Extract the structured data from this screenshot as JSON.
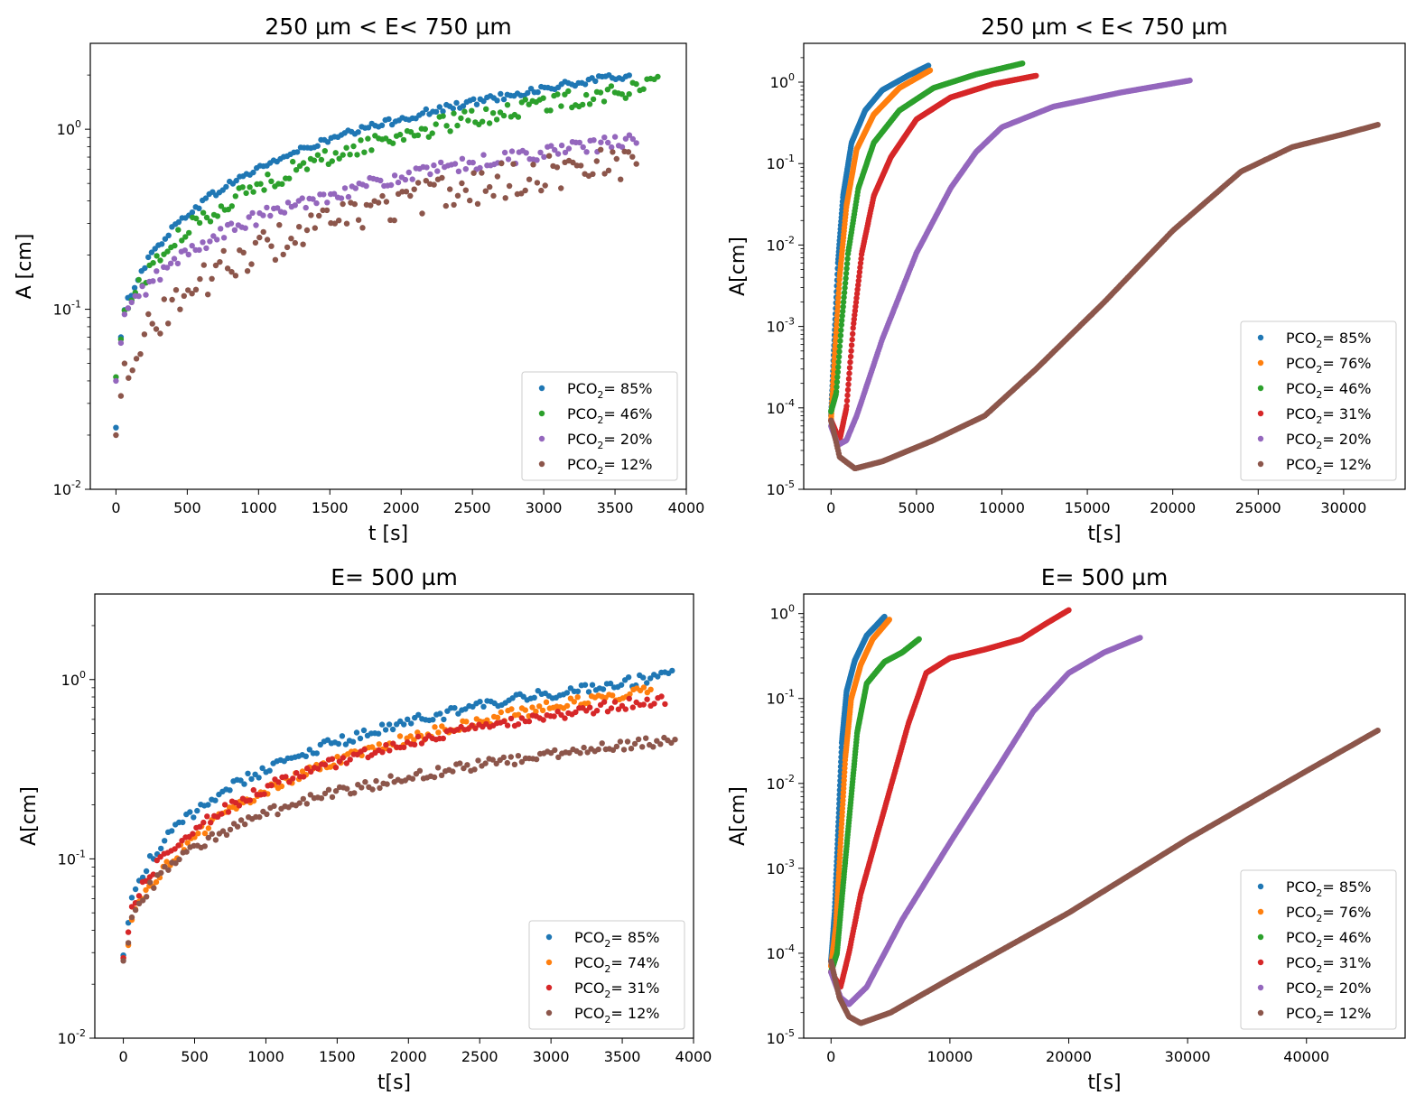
{
  "chart_data": [
    {
      "type": "scatter",
      "title": "250 µm < E<  750 µm",
      "xlabel": "t [s]",
      "ylabel": "A [cm]",
      "yscale": "log",
      "xlim": [
        -180,
        4000
      ],
      "ylim": [
        0.01,
        3
      ],
      "xticks": [
        0,
        500,
        1000,
        1500,
        2000,
        2500,
        3000,
        3500,
        4000
      ],
      "yticks": [
        {
          "value": 0.01,
          "exp": "-2"
        },
        {
          "value": 0.1,
          "exp": "-1"
        },
        {
          "value": 1,
          "exp": "0"
        }
      ],
      "legend_position": "lower-right",
      "series": [
        {
          "name": "85%",
          "color": "#1f77b4",
          "mode": "sparse",
          "t_end": 3600,
          "y_end": 2.0,
          "tau": 120,
          "points": 150,
          "noise": 0.02,
          "start_values": [
            0.022,
            0.07
          ]
        },
        {
          "name": "46%",
          "color": "#2ca02c",
          "mode": "sparse",
          "t_end": 3800,
          "y_end": 1.75,
          "tau": 200,
          "points": 150,
          "noise": 0.05,
          "start_values": [
            0.042,
            0.068
          ]
        },
        {
          "name": "20%",
          "color": "#9467bd",
          "mode": "sparse",
          "t_end": 3650,
          "y_end": 0.87,
          "tau": 220,
          "points": 145,
          "noise": 0.04,
          "start_values": [
            0.04,
            0.065
          ]
        },
        {
          "name": "12%",
          "color": "#8c564b",
          "mode": "sparse",
          "t_end": 3650,
          "y_end": 0.68,
          "tau": 200,
          "points": 130,
          "noise": 0.1,
          "start_values": [
            0.02,
            0.033
          ]
        }
      ]
    },
    {
      "type": "scatter",
      "title": "250 µm < E<  750 µm",
      "xlabel": "t[s]",
      "ylabel": "A[cm]",
      "yscale": "log",
      "xlim": [
        -1600,
        33600
      ],
      "ylim": [
        1e-05,
        3
      ],
      "xticks": [
        0,
        5000,
        10000,
        15000,
        20000,
        25000,
        30000
      ],
      "yticks": [
        {
          "value": 1e-05,
          "exp": "-5"
        },
        {
          "value": 0.0001,
          "exp": "-4"
        },
        {
          "value": 0.001,
          "exp": "-3"
        },
        {
          "value": 0.01,
          "exp": "-2"
        },
        {
          "value": 0.1,
          "exp": "-1"
        },
        {
          "value": 1,
          "exp": "0"
        }
      ],
      "legend_position": "lower-right",
      "series": [
        {
          "name": "85%",
          "color": "#1f77b4",
          "mode": "dense",
          "points": 260,
          "curve": [
            [
              0,
              8e-05
            ],
            [
              150,
              0.00045
            ],
            [
              400,
              0.006
            ],
            [
              700,
              0.04
            ],
            [
              1200,
              0.18
            ],
            [
              2000,
              0.45
            ],
            [
              3000,
              0.8
            ],
            [
              4500,
              1.2
            ],
            [
              5700,
              1.6
            ]
          ]
        },
        {
          "name": "76%",
          "color": "#ff7f0e",
          "mode": "dense",
          "points": 260,
          "curve": [
            [
              0,
              7e-05
            ],
            [
              200,
              0.0004
            ],
            [
              500,
              0.004
            ],
            [
              900,
              0.03
            ],
            [
              1500,
              0.15
            ],
            [
              2500,
              0.4
            ],
            [
              4000,
              0.85
            ],
            [
              5800,
              1.4
            ]
          ]
        },
        {
          "name": "46%",
          "color": "#2ca02c",
          "mode": "dense",
          "points": 320,
          "curve": [
            [
              0,
              9e-05
            ],
            [
              300,
              0.00015
            ],
            [
              600,
              0.001
            ],
            [
              1000,
              0.008
            ],
            [
              1600,
              0.05
            ],
            [
              2500,
              0.18
            ],
            [
              4000,
              0.45
            ],
            [
              6000,
              0.85
            ],
            [
              8500,
              1.25
            ],
            [
              11200,
              1.7
            ]
          ]
        },
        {
          "name": "31%",
          "color": "#d62728",
          "mode": "dense",
          "points": 340,
          "curve": [
            [
              0,
              7e-05
            ],
            [
              500,
              4e-05
            ],
            [
              900,
              0.0001
            ],
            [
              1300,
              0.001
            ],
            [
              1800,
              0.008
            ],
            [
              2500,
              0.04
            ],
            [
              3500,
              0.12
            ],
            [
              5000,
              0.35
            ],
            [
              7000,
              0.65
            ],
            [
              9500,
              0.95
            ],
            [
              12000,
              1.2
            ]
          ]
        },
        {
          "name": "20%",
          "color": "#9467bd",
          "mode": "dense",
          "points": 380,
          "curve": [
            [
              0,
              6e-05
            ],
            [
              400,
              3.5e-05
            ],
            [
              900,
              4e-05
            ],
            [
              1500,
              8e-05
            ],
            [
              3000,
              0.0007
            ],
            [
              5000,
              0.008
            ],
            [
              7000,
              0.05
            ],
            [
              8500,
              0.14
            ],
            [
              10000,
              0.28
            ],
            [
              13000,
              0.5
            ],
            [
              17000,
              0.75
            ],
            [
              21000,
              1.05
            ]
          ]
        },
        {
          "name": "12%",
          "color": "#8c564b",
          "mode": "dense",
          "points": 420,
          "curve": [
            [
              0,
              7e-05
            ],
            [
              500,
              2.5e-05
            ],
            [
              1400,
              1.8e-05
            ],
            [
              3000,
              2.2e-05
            ],
            [
              6000,
              4e-05
            ],
            [
              9000,
              8e-05
            ],
            [
              12000,
              0.0003
            ],
            [
              16000,
              0.002
            ],
            [
              20000,
              0.015
            ],
            [
              24000,
              0.08
            ],
            [
              27000,
              0.16
            ],
            [
              30000,
              0.23
            ],
            [
              32000,
              0.3
            ]
          ]
        }
      ]
    },
    {
      "type": "scatter",
      "title": "E=  500 µm",
      "xlabel": "t[s]",
      "ylabel": "A[cm]",
      "yscale": "log",
      "xlim": [
        -200,
        4000
      ],
      "ylim": [
        0.01,
        3
      ],
      "xticks": [
        0,
        500,
        1000,
        1500,
        2000,
        2500,
        3000,
        3500,
        4000
      ],
      "yticks": [
        {
          "value": 0.01,
          "exp": "-2"
        },
        {
          "value": 0.1,
          "exp": "-1"
        },
        {
          "value": 1,
          "exp": "0"
        }
      ],
      "legend_position": "lower-right",
      "series": [
        {
          "name": "85%",
          "color": "#1f77b4",
          "mode": "sparse",
          "t_end": 3850,
          "y_end": 1.05,
          "tau": 150,
          "points": 150,
          "noise": 0.03,
          "start_values": [
            0.029,
            0.044
          ]
        },
        {
          "name": "74%",
          "color": "#ff7f0e",
          "mode": "sparse",
          "t_end": 3700,
          "y_end": 0.88,
          "tau": 220,
          "points": 150,
          "noise": 0.03,
          "start_values": [
            0.028,
            0.033
          ]
        },
        {
          "name": "31%",
          "color": "#d62728",
          "mode": "sparse",
          "t_end": 3800,
          "y_end": 0.78,
          "tau": 180,
          "points": 150,
          "noise": 0.03,
          "start_values": [
            0.028,
            0.039
          ]
        },
        {
          "name": "12%",
          "color": "#8c564b",
          "mode": "sparse",
          "t_end": 3870,
          "y_end": 0.46,
          "tau": 140,
          "points": 150,
          "noise": 0.03,
          "start_values": [
            0.027,
            0.034
          ]
        }
      ]
    },
    {
      "type": "scatter",
      "title": "E=  500 µm",
      "xlabel": "t[s]",
      "ylabel": "A[cm]",
      "yscale": "log",
      "xlim": [
        -2300,
        48300
      ],
      "ylim": [
        1e-05,
        1.7
      ],
      "xticks": [
        0,
        10000,
        20000,
        30000,
        40000
      ],
      "yticks": [
        {
          "value": 1e-05,
          "exp": "-5"
        },
        {
          "value": 0.0001,
          "exp": "-4"
        },
        {
          "value": 0.001,
          "exp": "-3"
        },
        {
          "value": 0.01,
          "exp": "-2"
        },
        {
          "value": 0.1,
          "exp": "-1"
        },
        {
          "value": 1,
          "exp": "0"
        }
      ],
      "legend_position": "lower-right",
      "series": [
        {
          "name": "85%",
          "color": "#1f77b4",
          "mode": "dense",
          "points": 240,
          "curve": [
            [
              0,
              8e-05
            ],
            [
              300,
              0.0003
            ],
            [
              600,
              0.003
            ],
            [
              900,
              0.03
            ],
            [
              1300,
              0.12
            ],
            [
              2000,
              0.28
            ],
            [
              3000,
              0.55
            ],
            [
              4500,
              0.92
            ]
          ]
        },
        {
          "name": "76%",
          "color": "#ff7f0e",
          "mode": "dense",
          "points": 240,
          "curve": [
            [
              0,
              7e-05
            ],
            [
              400,
              0.0002
            ],
            [
              800,
              0.002
            ],
            [
              1200,
              0.02
            ],
            [
              1700,
              0.1
            ],
            [
              2500,
              0.25
            ],
            [
              3500,
              0.5
            ],
            [
              4900,
              0.85
            ]
          ]
        },
        {
          "name": "46%",
          "color": "#2ca02c",
          "mode": "dense",
          "points": 300,
          "curve": [
            [
              0,
              6e-05
            ],
            [
              500,
              0.0001
            ],
            [
              1000,
              0.0006
            ],
            [
              1600,
              0.005
            ],
            [
              2200,
              0.04
            ],
            [
              3000,
              0.15
            ],
            [
              4500,
              0.27
            ],
            [
              6000,
              0.35
            ],
            [
              7400,
              0.5
            ]
          ]
        },
        {
          "name": "31%",
          "color": "#d62728",
          "mode": "dense",
          "points": 340,
          "curve": [
            [
              0,
              6e-05
            ],
            [
              800,
              4e-05
            ],
            [
              1500,
              0.0001
            ],
            [
              2500,
              0.0005
            ],
            [
              4500,
              0.005
            ],
            [
              6500,
              0.05
            ],
            [
              8000,
              0.2
            ],
            [
              10000,
              0.3
            ],
            [
              13000,
              0.38
            ],
            [
              16000,
              0.5
            ],
            [
              18000,
              0.75
            ],
            [
              20000,
              1.1
            ]
          ]
        },
        {
          "name": "20%",
          "color": "#9467bd",
          "mode": "dense",
          "points": 380,
          "curve": [
            [
              0,
              6e-05
            ],
            [
              800,
              3e-05
            ],
            [
              1500,
              2.5e-05
            ],
            [
              3000,
              4e-05
            ],
            [
              6000,
              0.00025
            ],
            [
              10000,
              0.002
            ],
            [
              14000,
              0.015
            ],
            [
              17000,
              0.07
            ],
            [
              20000,
              0.2
            ],
            [
              23000,
              0.35
            ],
            [
              26000,
              0.52
            ]
          ]
        },
        {
          "name": "12%",
          "color": "#8c564b",
          "mode": "dense",
          "points": 440,
          "curve": [
            [
              0,
              8e-05
            ],
            [
              700,
              3e-05
            ],
            [
              1500,
              1.8e-05
            ],
            [
              2500,
              1.5e-05
            ],
            [
              5000,
              2e-05
            ],
            [
              10000,
              5e-05
            ],
            [
              20000,
              0.0003
            ],
            [
              30000,
              0.0022
            ],
            [
              40000,
              0.014
            ],
            [
              46000,
              0.042
            ]
          ]
        }
      ]
    }
  ]
}
